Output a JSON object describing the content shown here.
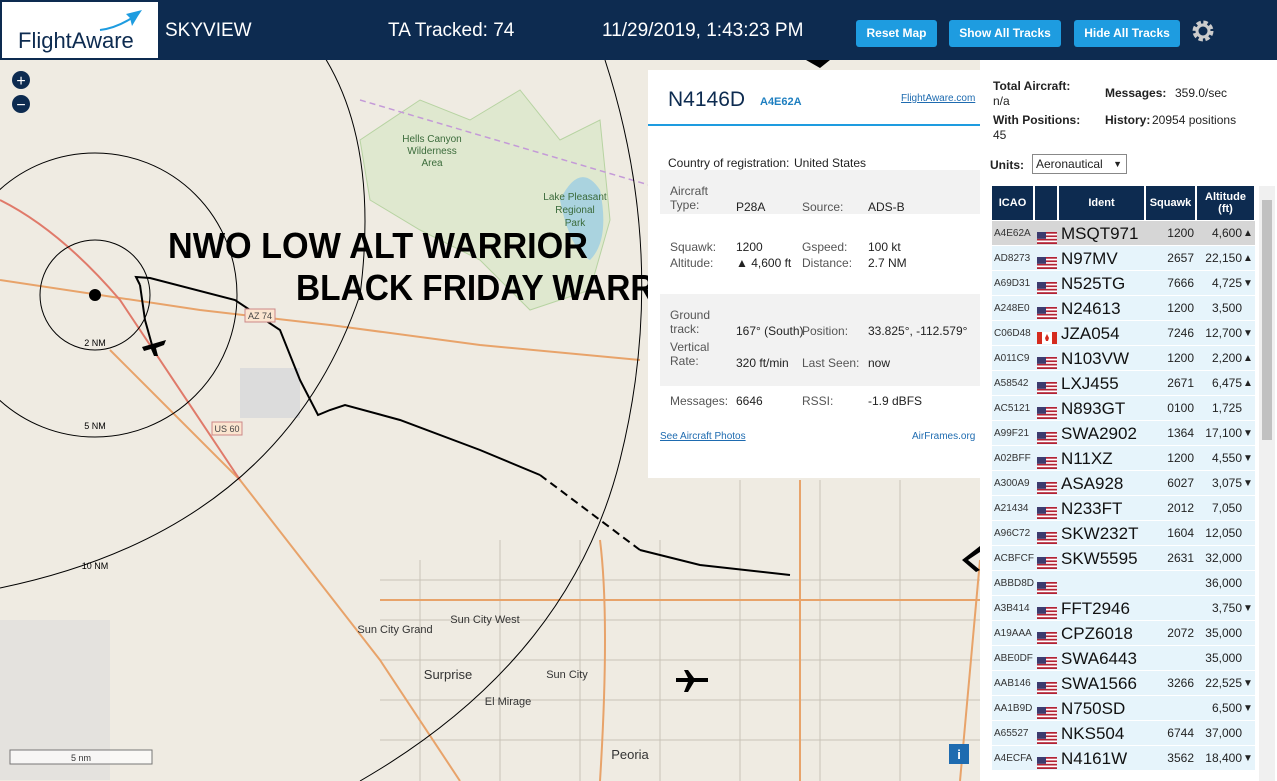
{
  "header": {
    "logo": "FlightAware",
    "app": "SKYVIEW",
    "tracked": "TA Tracked: 74",
    "datetime": "11/29/2019, 1:43:23 PM",
    "buttons": [
      "Reset Map",
      "Show All Tracks",
      "Hide All Tracks"
    ]
  },
  "map": {
    "overlay": [
      "NWO LOW ALT WARRIOR",
      "BLACK FRIDAY WARRIOR"
    ],
    "labels": [
      "Hells Canyon",
      "Wilderness",
      "Area",
      "Lake Pleasant",
      "Regional",
      "Park",
      "AZ 74",
      "US 60",
      "Sun City Grand",
      "Sun City West",
      "Surprise",
      "Sun City",
      "El Mirage",
      "Peoria"
    ],
    "rings": [
      "2 NM",
      "5 NM",
      "10 NM"
    ],
    "scale": "5 nm",
    "zoom": [
      "+",
      "−"
    ],
    "info": "i"
  },
  "aircraft": {
    "callsign": "N4146D",
    "hex": "A4E62A",
    "link": "FlightAware.com",
    "country": {
      "label": "Country of registration:",
      "value": "United States"
    },
    "fields": [
      [
        "Aircraft Type:",
        "P28A",
        "Source:",
        "ADS-B"
      ],
      [
        "Squawk:",
        "1200",
        "Gspeed:",
        "100 kt"
      ],
      [
        "Altitude:",
        "▲ 4,600 ft",
        "Distance:",
        "2.7 NM"
      ],
      [
        "Ground track:",
        "167° (South)",
        "Position:",
        "33.825°, -112.579°"
      ],
      [
        "Vertical Rate:",
        "320 ft/min",
        "Last Seen:",
        "now"
      ],
      [
        "Messages:",
        "6646",
        "RSSI:",
        "-1.9 dBFS"
      ]
    ],
    "photos": "See Aircraft Photos",
    "airframes": "AirFrames.org"
  },
  "stats": {
    "total_label": "Total Aircraft:",
    "total": "n/a",
    "messages_label": "Messages:",
    "messages": "359.0/sec",
    "positions_label": "With Positions:",
    "positions": "45",
    "history_label": "History:",
    "history": "20954 positions",
    "units_label": "Units:",
    "units": "Aeronautical"
  },
  "table": {
    "headers": [
      "ICAO",
      "Ident",
      "Squawk",
      "Altitude (ft)"
    ],
    "rows": [
      {
        "icao": "A4E62A",
        "flag": "us",
        "ident": "MSQT971",
        "squawk": "1200",
        "altitude": "4,600",
        "trend": "▲"
      },
      {
        "icao": "AD8273",
        "flag": "us",
        "ident": "N97MV",
        "squawk": "2657",
        "altitude": "22,150",
        "trend": "▲"
      },
      {
        "icao": "A69D31",
        "flag": "us",
        "ident": "N525TG",
        "squawk": "7666",
        "altitude": "4,725",
        "trend": "▼"
      },
      {
        "icao": "A248E0",
        "flag": "us",
        "ident": "N24613",
        "squawk": "1200",
        "altitude": "3,500"
      },
      {
        "icao": "C06D48",
        "flag": "ca",
        "ident": "JZA054",
        "squawk": "7246",
        "altitude": "12,700",
        "trend": "▼"
      },
      {
        "icao": "A011C9",
        "flag": "us",
        "ident": "N103VW",
        "squawk": "1200",
        "altitude": "2,200",
        "trend": "▲"
      },
      {
        "icao": "A58542",
        "flag": "us",
        "ident": "LXJ455",
        "squawk": "2671",
        "altitude": "6,475",
        "trend": "▲"
      },
      {
        "icao": "AC5121",
        "flag": "us",
        "ident": "N893GT",
        "squawk": "0100",
        "altitude": "1,725"
      },
      {
        "icao": "A99F21",
        "flag": "us",
        "ident": "SWA2902",
        "squawk": "1364",
        "altitude": "17,100",
        "trend": "▼"
      },
      {
        "icao": "A02BFF",
        "flag": "us",
        "ident": "N11XZ",
        "squawk": "1200",
        "altitude": "4,550",
        "trend": "▼"
      },
      {
        "icao": "A300A9",
        "flag": "us",
        "ident": "ASA928",
        "squawk": "6027",
        "altitude": "3,075",
        "trend": "▼"
      },
      {
        "icao": "A21434",
        "flag": "us",
        "ident": "N233FT",
        "squawk": "2012",
        "altitude": "7,050"
      },
      {
        "icao": "A96C72",
        "flag": "us",
        "ident": "SKW232T",
        "squawk": "1604",
        "altitude": "12,050"
      },
      {
        "icao": "ACBFCF",
        "flag": "us",
        "ident": "SKW5595",
        "squawk": "2631",
        "altitude": "32,000"
      },
      {
        "icao": "ABBD8D",
        "flag": "us",
        "altitude": "36,000"
      },
      {
        "icao": "A3B414",
        "flag": "us",
        "ident": "FFT2946",
        "altitude": "3,750",
        "trend": "▼"
      },
      {
        "icao": "A19AAA",
        "flag": "us",
        "ident": "CPZ6018",
        "squawk": "2072",
        "altitude": "35,000"
      },
      {
        "icao": "ABE0DF",
        "flag": "us",
        "ident": "SWA6443",
        "altitude": "35,000"
      },
      {
        "icao": "AAB146",
        "flag": "us",
        "ident": "SWA1566",
        "squawk": "3266",
        "altitude": "22,525",
        "trend": "▼"
      },
      {
        "icao": "AA1B9D",
        "flag": "us",
        "ident": "N750SD",
        "altitude": "6,500",
        "trend": "▼"
      },
      {
        "icao": "A65527",
        "flag": "us",
        "ident": "NKS504",
        "squawk": "6744",
        "altitude": "37,000"
      },
      {
        "icao": "A4ECFA",
        "flag": "us",
        "ident": "N4161W",
        "squawk": "3562",
        "altitude": "18,400",
        "trend": "▼"
      }
    ]
  }
}
